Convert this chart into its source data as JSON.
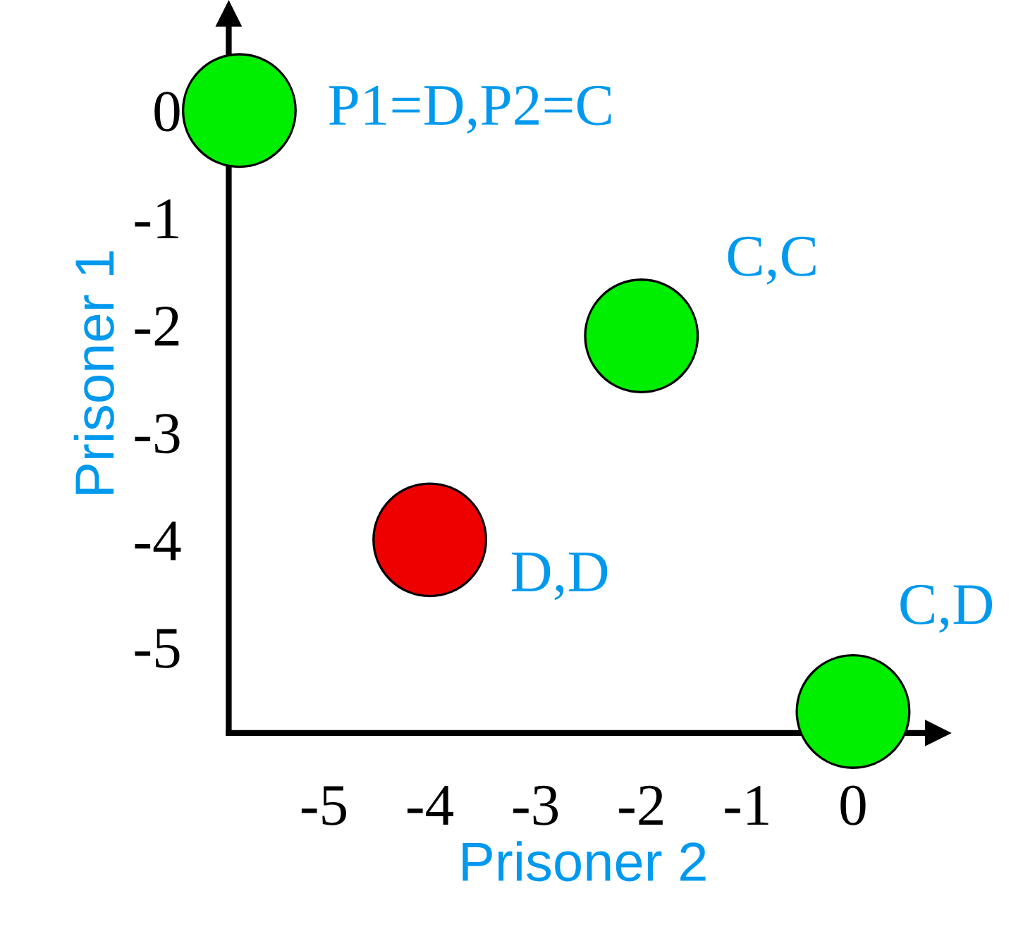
{
  "chart_data": {
    "type": "scatter",
    "xlabel": "Prisoner 2",
    "ylabel": "Prisoner 1",
    "x": [
      -5.8,
      -2,
      -4,
      0
    ],
    "values": [
      0,
      -2.1,
      -4,
      -5.6
    ],
    "colors": [
      "#00ee00",
      "#00ee00",
      "#ee0000",
      "#00ee00"
    ],
    "marker": "circle",
    "xlim": [
      -5.9,
      0.8
    ],
    "ylim": [
      -5.8,
      0.9
    ],
    "xticks": [
      -5,
      -4,
      -3,
      -2,
      -1,
      0
    ],
    "yticks": [
      0,
      -1,
      -2,
      -3,
      -4,
      -5
    ],
    "grid": false,
    "legend": false,
    "annotations": [
      {
        "text": "P1=D,P2=C",
        "x": -5.8,
        "y": 0
      },
      {
        "text": "C,C",
        "x": -2,
        "y": -2.1
      },
      {
        "text": "D,D",
        "x": -4,
        "y": -4
      },
      {
        "text": "C,D",
        "x": 0,
        "y": -5.6
      }
    ]
  }
}
